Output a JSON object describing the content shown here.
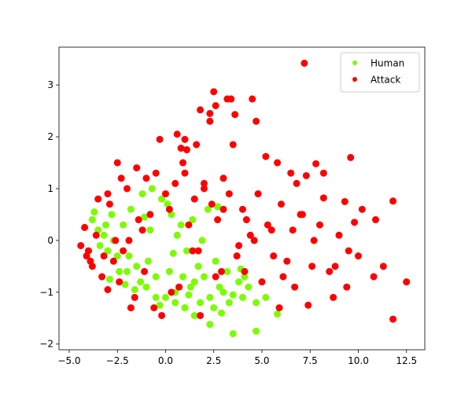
{
  "chart_data": {
    "type": "scatter",
    "xlim": [
      -5.53,
      13.45
    ],
    "ylim": [
      -2.11,
      3.73
    ],
    "xticks": [
      {
        "value": -5,
        "label": "−5.0"
      },
      {
        "value": -2.5,
        "label": "−2.5"
      },
      {
        "value": 0,
        "label": "0.0"
      },
      {
        "value": 2.5,
        "label": "2.5"
      },
      {
        "value": 5,
        "label": "5.0"
      },
      {
        "value": 7.5,
        "label": "7.5"
      },
      {
        "value": 10,
        "label": "10.0"
      },
      {
        "value": 12.5,
        "label": "12.5"
      }
    ],
    "yticks": [
      {
        "value": -2,
        "label": "−2"
      },
      {
        "value": -1,
        "label": "−1"
      },
      0,
      1,
      2,
      3
    ],
    "legend": "upper right",
    "series": [
      {
        "name": "Human",
        "color": "#7cfc00",
        "x": [
          -3.8,
          -3.5,
          -3.2,
          -3.0,
          -2.8,
          -2.5,
          -2.2,
          -2.0,
          -1.8,
          -1.5,
          -1.2,
          -1.0,
          -0.8,
          -0.5,
          -0.2,
          0.0,
          0.3,
          0.5,
          0.8,
          1.0,
          1.3,
          1.5,
          1.8,
          2.0,
          2.3,
          2.5,
          2.8,
          3.0,
          3.3,
          3.5,
          3.8,
          4.0,
          4.3,
          4.7,
          5.2,
          5.8,
          2.3,
          3.5,
          4.7,
          1.5,
          1.0,
          0.5,
          -0.5,
          -1.3,
          -2.4,
          -3.1,
          -3.7,
          -2.7,
          -1.9,
          -0.9,
          0.2,
          0.9,
          1.7,
          2.6,
          3.2,
          4.1,
          2.9,
          1.2,
          -0.3,
          -1.6,
          -2.9,
          0.6,
          1.9,
          2.2,
          -0.7,
          0.1,
          1.4,
          2.7,
          3.9,
          -3.4,
          -2.1,
          -1.1,
          0.4,
          1.1
        ],
        "y": [
          0.4,
          0.2,
          0.1,
          -0.2,
          0.5,
          -0.3,
          0.3,
          -0.6,
          0.6,
          -0.5,
          0.9,
          -0.9,
          0.2,
          -0.7,
          0.8,
          -1.1,
          0.5,
          -1.0,
          0.3,
          -1.3,
          -0.9,
          -0.8,
          -1.2,
          -0.7,
          -1.1,
          -1.3,
          -0.9,
          -1.0,
          -1.2,
          -1.05,
          -0.8,
          -1.1,
          -0.9,
          -1.2,
          -1.1,
          -1.42,
          -1.62,
          -1.8,
          -1.75,
          -1.45,
          -1.3,
          -1.2,
          -1.1,
          -0.8,
          -0.6,
          0.3,
          0.55,
          0.0,
          -0.3,
          -0.4,
          -0.6,
          -0.7,
          -0.5,
          -0.4,
          -0.6,
          -0.7,
          -1.4,
          -1.05,
          -1.25,
          -0.95,
          -0.75,
          0.1,
          0.0,
          0.6,
          1.0,
          0.7,
          0.4,
          0.65,
          -0.55,
          -0.1,
          -0.85,
          0.45,
          -0.25,
          -0.2
        ]
      },
      {
        "name": "Attack",
        "color": "#ff0000",
        "x": [
          7.2,
          2.5,
          3.2,
          3.4,
          4.5,
          2.6,
          1.8,
          3.6,
          2.3,
          2.3,
          4.7,
          0.6,
          1.0,
          1.6,
          3.5,
          -0.3,
          0.8,
          1.1,
          5.2,
          9.6,
          5.8,
          7.8,
          6.5,
          8.2,
          7.3,
          6.8,
          11.8,
          8.2,
          9.3,
          10.2,
          10.9,
          9.8,
          12.5,
          11.8,
          11.3,
          10.8,
          9.4,
          8.7,
          7.4,
          5.9,
          8.0,
          9.0,
          10.0,
          7.0,
          6.0,
          6.3,
          5.5,
          8.5,
          9.5,
          4.8,
          5.0,
          6.7,
          7.6,
          4.2,
          3.8,
          3.0,
          2.0,
          1.5,
          0.5,
          -0.5,
          -1.5,
          -2.5,
          -3.5,
          -4.2,
          -4.0,
          -3.8,
          -3.3,
          -3.0,
          -2.7,
          -2.2,
          -1.9,
          -1.2,
          -0.8,
          0.2,
          1.2,
          2.7,
          3.3,
          4.4,
          -4.4,
          -3.6,
          -2.9,
          -2.0,
          -1.0,
          0.0,
          1.0,
          2.0,
          3.0,
          4.0,
          -3.9,
          -3.2,
          -2.4,
          -1.6,
          -0.6,
          0.7,
          1.8,
          2.9,
          3.7,
          -2.3,
          -1.4,
          -0.2,
          1.4,
          2.4,
          -3.0,
          -1.8,
          0.3,
          1.7,
          2.6,
          4.6,
          5.6,
          6.6,
          7.7,
          8.8,
          6.1,
          7.1,
          5.3,
          4.1,
          -2.6,
          -1.1,
          0.9,
          -4.1
        ],
        "y": [
          3.42,
          2.87,
          2.73,
          2.73,
          2.73,
          2.6,
          2.52,
          2.43,
          2.45,
          2.3,
          2.3,
          2.05,
          1.95,
          1.85,
          1.85,
          1.95,
          1.78,
          1.75,
          1.62,
          1.6,
          1.5,
          1.48,
          1.3,
          1.3,
          1.25,
          1.1,
          0.76,
          0.82,
          0.75,
          0.6,
          0.4,
          0.35,
          -0.8,
          -1.52,
          -0.5,
          -0.7,
          -0.9,
          -1.1,
          -1.25,
          -1.3,
          0.3,
          0.1,
          -0.3,
          0.5,
          0.7,
          -0.4,
          0.2,
          -0.6,
          -0.2,
          0.9,
          -0.8,
          -0.9,
          -0.5,
          0.4,
          -0.1,
          0.6,
          1.0,
          0.8,
          1.1,
          1.3,
          1.4,
          1.5,
          0.8,
          0.25,
          -0.2,
          -0.5,
          -0.7,
          -0.95,
          -0.4,
          -0.2,
          0.0,
          0.2,
          0.5,
          0.6,
          0.3,
          0.4,
          0.9,
          0.1,
          -0.1,
          0.1,
          0.7,
          1.0,
          1.2,
          0.9,
          1.3,
          1.1,
          1.2,
          0.6,
          -0.4,
          -0.3,
          -0.8,
          -1.1,
          -1.3,
          -0.9,
          -1.45,
          -0.6,
          -0.3,
          1.2,
          0.4,
          -1.45,
          -0.2,
          0.7,
          0.9,
          -1.3,
          -1.0,
          -0.2,
          -0.7,
          0.0,
          -0.3,
          0.2,
          0.0,
          -0.5,
          -0.7,
          0.5,
          0.3,
          -0.6,
          0.0,
          -0.6,
          1.5,
          -0.3
        ]
      }
    ]
  }
}
